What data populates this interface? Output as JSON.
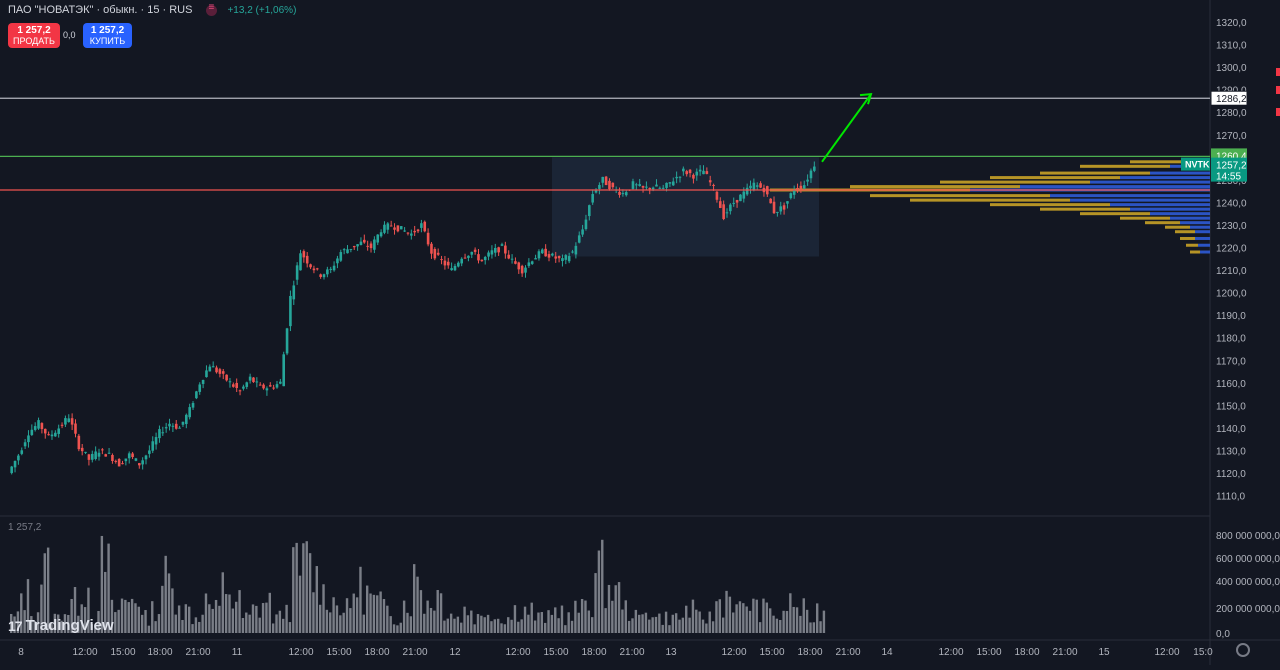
{
  "header": {
    "symbol": "ПАО \"НОВАТЭК\" · обыкн. · 15 · RUS",
    "change": "+13,2 (+1,06%)",
    "sell_price": "1 257,2",
    "sell_label": "ПРОДАТЬ",
    "spread": "0,0",
    "buy_price": "1 257,2",
    "buy_label": "КУПИТЬ"
  },
  "volume_pane": {
    "label": "1 257,2"
  },
  "logo": "TradingView",
  "colors": {
    "bg": "#131722",
    "up": "#26a69a",
    "down": "#ef5350",
    "grid": "#2a2e39"
  },
  "price_axis": [
    "1320,0",
    "1310,0",
    "1300,0",
    "1290,0",
    "1280,0",
    "1270,0",
    "1250,0",
    "1240,0",
    "1230,0",
    "1220,0",
    "1210,0",
    "1200,0",
    "1190,0",
    "1180,0",
    "1170,0",
    "1160,0",
    "1150,0",
    "1140,0",
    "1130,0",
    "1120,0",
    "1110,0"
  ],
  "price_labels": {
    "target": "1286,2",
    "resistance": "1260,4",
    "ticker": "NVTK",
    "last": "1257,2",
    "countdown": "14:55"
  },
  "volume_axis": [
    "800 000 000,0",
    "600 000 000,0",
    "400 000 000,0",
    "200 000 000,0",
    "0,0"
  ],
  "time_axis": [
    "8",
    "12:00",
    "15:00",
    "18:00",
    "21:00",
    "11",
    "12:00",
    "15:00",
    "18:00",
    "21:00",
    "12",
    "12:00",
    "15:00",
    "18:00",
    "21:00",
    "13",
    "12:00",
    "15:00",
    "18:00",
    "21:00",
    "14",
    "12:00",
    "15:00",
    "18:00",
    "21:00",
    "15",
    "12:00",
    "15:0"
  ],
  "chart_data": {
    "type": "candlestick",
    "symbol": "NVTK",
    "interval": "15",
    "last_price": 1257.2,
    "horizontal_lines": [
      {
        "price": 1286.2,
        "color": "#b2b5be"
      },
      {
        "price": 1260.4,
        "color": "#4caf50"
      },
      {
        "price": 1245.5,
        "color": "#ef5350"
      }
    ],
    "range_box": {
      "price_top": 1260,
      "price_bottom": 1216
    },
    "arrow": {
      "from_price": 1258,
      "to_price": 1288,
      "color": "#00e600"
    },
    "close_path": [
      1120,
      1128,
      1138,
      1142,
      1136,
      1140,
      1145,
      1132,
      1126,
      1130,
      1128,
      1124,
      1128,
      1124,
      1130,
      1138,
      1142,
      1140,
      1148,
      1160,
      1168,
      1164,
      1160,
      1156,
      1162,
      1158,
      1158,
      1160,
      1198,
      1218,
      1212,
      1208,
      1210,
      1218,
      1220,
      1222,
      1220,
      1228,
      1230,
      1228,
      1226,
      1230,
      1218,
      1214,
      1210,
      1216,
      1218,
      1214,
      1218,
      1220,
      1214,
      1210,
      1215,
      1218,
      1216,
      1214,
      1218,
      1228,
      1244,
      1250,
      1246,
      1244,
      1248,
      1246,
      1247,
      1246,
      1250,
      1254,
      1252,
      1254,
      1246,
      1234,
      1240,
      1244,
      1248,
      1246,
      1236,
      1238,
      1246,
      1248,
      1257
    ],
    "volume_path": [
      2,
      5,
      3,
      8,
      2,
      3,
      4,
      6,
      2,
      9,
      3,
      4,
      5,
      2,
      3,
      7,
      5,
      3,
      2,
      4,
      3,
      6,
      4,
      2,
      3,
      4,
      2,
      3,
      8,
      9,
      7,
      5,
      4,
      3,
      6,
      5,
      4,
      3,
      2,
      4,
      7,
      4,
      5,
      3,
      2,
      3,
      2,
      3,
      2,
      2,
      3,
      3,
      2,
      2,
      3,
      2,
      3,
      4,
      8,
      6,
      5,
      3,
      2,
      3,
      2,
      2,
      2,
      3,
      2,
      2,
      4,
      5,
      3,
      4,
      3,
      3,
      2,
      4,
      3,
      2,
      3
    ],
    "volume_profile": [
      {
        "price": 1258,
        "up": 60,
        "down": 20
      },
      {
        "price": 1256,
        "up": 90,
        "down": 40
      },
      {
        "price": 1253,
        "up": 110,
        "down": 60
      },
      {
        "price": 1251,
        "up": 130,
        "down": 90
      },
      {
        "price": 1249,
        "up": 150,
        "down": 120
      },
      {
        "price": 1247,
        "up": 170,
        "down": 190
      },
      {
        "price": 1245.5,
        "up": 200,
        "down": 240
      },
      {
        "price": 1243,
        "up": 180,
        "down": 160
      },
      {
        "price": 1241,
        "up": 160,
        "down": 140
      },
      {
        "price": 1239,
        "up": 120,
        "down": 100
      },
      {
        "price": 1237,
        "up": 90,
        "down": 80
      },
      {
        "price": 1235,
        "up": 70,
        "down": 60
      },
      {
        "price": 1233,
        "up": 50,
        "down": 40
      },
      {
        "price": 1231,
        "up": 35,
        "down": 30
      },
      {
        "price": 1229,
        "up": 25,
        "down": 20
      },
      {
        "price": 1227,
        "up": 20,
        "down": 15
      },
      {
        "price": 1224,
        "up": 15,
        "down": 15
      },
      {
        "price": 1221,
        "up": 12,
        "down": 12
      },
      {
        "price": 1218,
        "up": 10,
        "down": 10
      }
    ]
  }
}
